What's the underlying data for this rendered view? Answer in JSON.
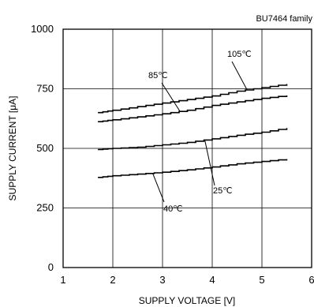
{
  "chart_data": {
    "type": "line",
    "note": "BU7464 family",
    "xlabel": "SUPPLY VOLTAGE [V]",
    "ylabel": "SUPPLY CURRENT [μA]",
    "xlim": [
      1,
      6
    ],
    "ylim": [
      0,
      1000
    ],
    "x_ticks": [
      1,
      2,
      3,
      4,
      5,
      6
    ],
    "y_ticks": [
      0,
      250,
      500,
      750,
      1000
    ],
    "x_tick_labels": [
      "1",
      "2",
      "3",
      "4",
      "5",
      "6"
    ],
    "y_tick_labels": [
      "0",
      "250",
      "500",
      "750",
      "1000"
    ],
    "grid": true,
    "series": [
      {
        "name": "105℃",
        "x": [
          1.7,
          2.0,
          2.5,
          3.0,
          3.5,
          4.0,
          4.5,
          5.0,
          5.5
        ],
        "y": [
          650,
          660,
          675,
          690,
          705,
          720,
          740,
          755,
          770
        ]
      },
      {
        "name": "85℃",
        "x": [
          1.7,
          2.0,
          2.5,
          3.0,
          3.5,
          4.0,
          4.5,
          5.0,
          5.5
        ],
        "y": [
          612,
          620,
          632,
          645,
          660,
          680,
          695,
          710,
          722
        ]
      },
      {
        "name": "25℃",
        "x": [
          1.7,
          2.0,
          2.5,
          3.0,
          3.5,
          4.0,
          4.5,
          5.0,
          5.5
        ],
        "y": [
          495,
          500,
          505,
          515,
          525,
          540,
          555,
          568,
          585
        ]
      },
      {
        "name": "40℃",
        "x": [
          1.7,
          2.0,
          2.5,
          3.0,
          3.5,
          4.0,
          4.5,
          5.0,
          5.5
        ],
        "y": [
          378,
          385,
          392,
          400,
          410,
          422,
          435,
          445,
          455
        ]
      }
    ],
    "annotations": [
      {
        "label": "105℃",
        "target_series": 0
      },
      {
        "label": "85℃",
        "target_series": 1
      },
      {
        "label": "25℃",
        "target_series": 2
      },
      {
        "label": "40℃",
        "target_series": 3
      }
    ]
  }
}
